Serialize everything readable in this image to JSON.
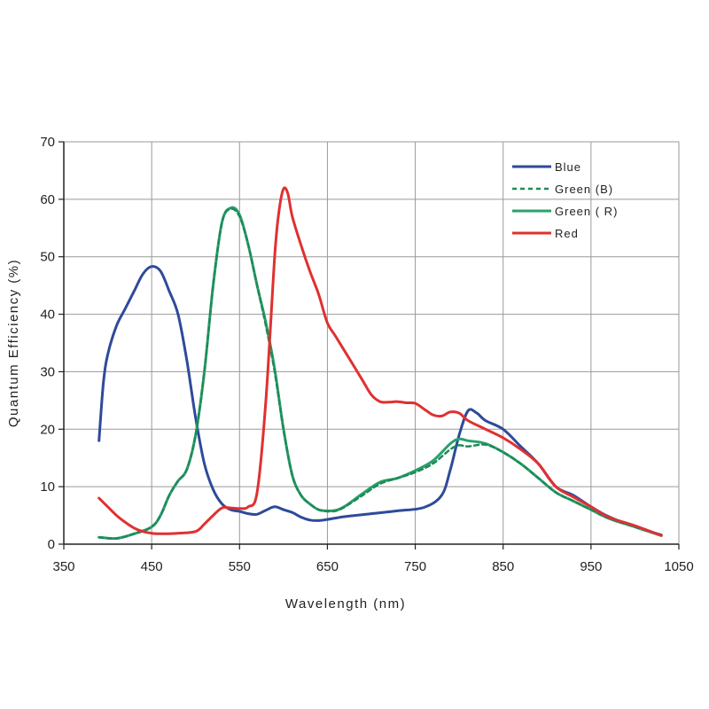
{
  "chart_data": {
    "type": "line",
    "xlabel": "Wavelength (nm)",
    "ylabel": "Quantum Efficiency (%)",
    "xlim": [
      350,
      1050
    ],
    "ylim": [
      0,
      70
    ],
    "xticks": [
      350,
      450,
      550,
      650,
      750,
      850,
      950,
      1050
    ],
    "yticks": [
      0,
      10,
      20,
      30,
      40,
      50,
      60,
      70
    ],
    "grid": true,
    "legend_position": "top-right",
    "series": [
      {
        "name": "Blue",
        "color": "#2e4a9a",
        "dash": "solid",
        "points": [
          [
            390,
            18
          ],
          [
            395,
            28
          ],
          [
            400,
            33
          ],
          [
            410,
            38
          ],
          [
            420,
            41
          ],
          [
            430,
            44
          ],
          [
            440,
            47
          ],
          [
            450,
            48.3
          ],
          [
            460,
            47.5
          ],
          [
            470,
            44
          ],
          [
            480,
            40
          ],
          [
            490,
            32
          ],
          [
            500,
            22
          ],
          [
            510,
            14
          ],
          [
            520,
            9.5
          ],
          [
            530,
            7
          ],
          [
            540,
            6
          ],
          [
            550,
            5.7
          ],
          [
            560,
            5.3
          ],
          [
            570,
            5.2
          ],
          [
            580,
            5.9
          ],
          [
            590,
            6.5
          ],
          [
            600,
            6
          ],
          [
            610,
            5.5
          ],
          [
            620,
            4.7
          ],
          [
            630,
            4.2
          ],
          [
            640,
            4.1
          ],
          [
            650,
            4.3
          ],
          [
            670,
            4.8
          ],
          [
            700,
            5.3
          ],
          [
            730,
            5.8
          ],
          [
            760,
            6.4
          ],
          [
            780,
            8.5
          ],
          [
            790,
            13
          ],
          [
            800,
            19
          ],
          [
            810,
            23.2
          ],
          [
            820,
            22.8
          ],
          [
            830,
            21.5
          ],
          [
            850,
            20
          ],
          [
            870,
            17
          ],
          [
            890,
            14
          ],
          [
            910,
            10
          ],
          [
            930,
            8.5
          ],
          [
            950,
            6.5
          ],
          [
            970,
            4.8
          ],
          [
            1000,
            3
          ],
          [
            1030,
            1.6
          ]
        ]
      },
      {
        "name": "Green (B)",
        "color": "#1e8a5a",
        "dash": "dashed",
        "points": [
          [
            390,
            1.2
          ],
          [
            410,
            1
          ],
          [
            430,
            1.8
          ],
          [
            450,
            3
          ],
          [
            460,
            5
          ],
          [
            470,
            8.5
          ],
          [
            480,
            11
          ],
          [
            490,
            13
          ],
          [
            500,
            19
          ],
          [
            510,
            30
          ],
          [
            520,
            45
          ],
          [
            530,
            56
          ],
          [
            540,
            58.3
          ],
          [
            550,
            57
          ],
          [
            560,
            52
          ],
          [
            570,
            45
          ],
          [
            580,
            38
          ],
          [
            590,
            30
          ],
          [
            600,
            20
          ],
          [
            610,
            12
          ],
          [
            620,
            8.5
          ],
          [
            630,
            7
          ],
          [
            640,
            6
          ],
          [
            650,
            5.7
          ],
          [
            660,
            5.8
          ],
          [
            670,
            6.5
          ],
          [
            690,
            8.5
          ],
          [
            710,
            10.5
          ],
          [
            730,
            11.5
          ],
          [
            750,
            12.5
          ],
          [
            770,
            14
          ],
          [
            790,
            16.5
          ],
          [
            800,
            17.2
          ],
          [
            810,
            17
          ],
          [
            830,
            17.3
          ],
          [
            850,
            16
          ],
          [
            870,
            14
          ],
          [
            890,
            11.5
          ],
          [
            910,
            9
          ],
          [
            930,
            7.5
          ],
          [
            950,
            6
          ],
          [
            970,
            4.5
          ],
          [
            1000,
            3
          ],
          [
            1030,
            1.5
          ]
        ]
      },
      {
        "name": "Green ( R)",
        "color": "#2aa06a",
        "dash": "solid",
        "points": [
          [
            390,
            1.2
          ],
          [
            410,
            1
          ],
          [
            430,
            1.8
          ],
          [
            450,
            3
          ],
          [
            460,
            5
          ],
          [
            470,
            8.5
          ],
          [
            480,
            11
          ],
          [
            490,
            13
          ],
          [
            500,
            19
          ],
          [
            510,
            30
          ],
          [
            520,
            45
          ],
          [
            530,
            56
          ],
          [
            540,
            58.5
          ],
          [
            550,
            57.3
          ],
          [
            560,
            52
          ],
          [
            570,
            45
          ],
          [
            580,
            38.5
          ],
          [
            590,
            30.5
          ],
          [
            600,
            20
          ],
          [
            610,
            12
          ],
          [
            620,
            8.5
          ],
          [
            630,
            7
          ],
          [
            640,
            6
          ],
          [
            650,
            5.8
          ],
          [
            660,
            5.9
          ],
          [
            670,
            6.6
          ],
          [
            690,
            8.8
          ],
          [
            710,
            10.8
          ],
          [
            730,
            11.5
          ],
          [
            750,
            12.8
          ],
          [
            770,
            14.5
          ],
          [
            790,
            17.5
          ],
          [
            800,
            18.3
          ],
          [
            810,
            18
          ],
          [
            830,
            17.5
          ],
          [
            850,
            16
          ],
          [
            870,
            14
          ],
          [
            890,
            11.5
          ],
          [
            910,
            9
          ],
          [
            930,
            7.5
          ],
          [
            950,
            6
          ],
          [
            970,
            4.5
          ],
          [
            1000,
            3
          ],
          [
            1030,
            1.5
          ]
        ]
      },
      {
        "name": "Red",
        "color": "#e03030",
        "dash": "solid",
        "points": [
          [
            390,
            8
          ],
          [
            400,
            6.5
          ],
          [
            410,
            5
          ],
          [
            420,
            3.8
          ],
          [
            430,
            2.8
          ],
          [
            440,
            2.2
          ],
          [
            450,
            1.9
          ],
          [
            460,
            1.8
          ],
          [
            480,
            1.9
          ],
          [
            500,
            2.2
          ],
          [
            510,
            3.5
          ],
          [
            520,
            5
          ],
          [
            530,
            6.3
          ],
          [
            540,
            6.3
          ],
          [
            550,
            6.2
          ],
          [
            560,
            6.5
          ],
          [
            570,
            9
          ],
          [
            580,
            25
          ],
          [
            590,
            50
          ],
          [
            595,
            58
          ],
          [
            600,
            61.8
          ],
          [
            605,
            61
          ],
          [
            610,
            57
          ],
          [
            620,
            52
          ],
          [
            630,
            47.5
          ],
          [
            640,
            43.5
          ],
          [
            650,
            38.5
          ],
          [
            660,
            36
          ],
          [
            680,
            31
          ],
          [
            690,
            28.5
          ],
          [
            700,
            26
          ],
          [
            710,
            24.8
          ],
          [
            720,
            24.7
          ],
          [
            730,
            24.8
          ],
          [
            740,
            24.6
          ],
          [
            750,
            24.5
          ],
          [
            760,
            23.5
          ],
          [
            770,
            22.5
          ],
          [
            780,
            22.3
          ],
          [
            790,
            23
          ],
          [
            800,
            22.8
          ],
          [
            810,
            21.5
          ],
          [
            830,
            20
          ],
          [
            850,
            18.5
          ],
          [
            870,
            16.5
          ],
          [
            890,
            14
          ],
          [
            910,
            10
          ],
          [
            930,
            8.2
          ],
          [
            950,
            6.5
          ],
          [
            970,
            4.7
          ],
          [
            1000,
            3.2
          ],
          [
            1030,
            1.5
          ]
        ]
      }
    ]
  }
}
